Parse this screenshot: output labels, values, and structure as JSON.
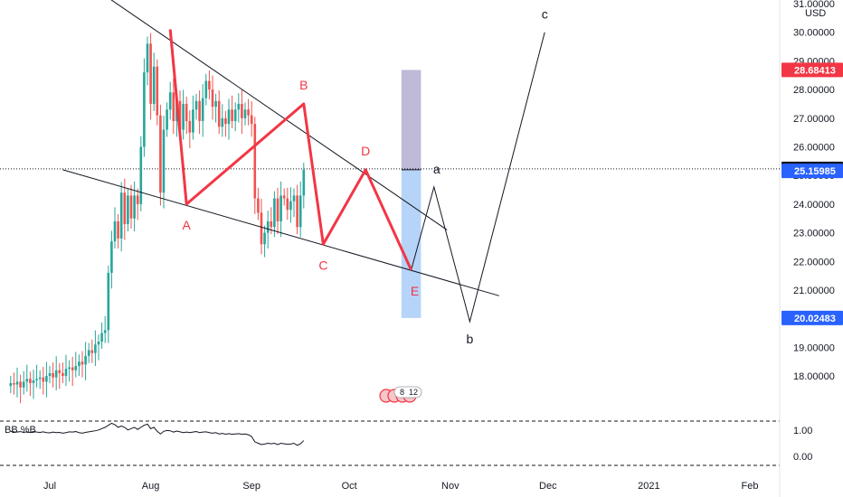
{
  "chart_data": {
    "type": "candlestick",
    "currency_label": "USD",
    "y_axis": {
      "range": [
        17.1,
        31.0
      ],
      "ticks": [
        "31.00000",
        "30.00000",
        "29.00000",
        "28.00000",
        "27.00000",
        "26.00000",
        "25.00000",
        "24.00000",
        "23.00000",
        "22.00000",
        "21.00000",
        "20.00000",
        "19.00000",
        "18.00000"
      ]
    },
    "x_axis": {
      "ticks": [
        "Jul",
        "Aug",
        "Sep",
        "Oct",
        "Nov",
        "Dec",
        "2021",
        "Feb"
      ]
    },
    "price_badges": [
      {
        "value": 28.68413,
        "label": "28.68413",
        "color": "#f23645"
      },
      {
        "value": 25.23252,
        "label": "25.23252",
        "color": "#131722"
      },
      {
        "value": 25.15985,
        "label": "25.15985",
        "color": "#2962ff"
      },
      {
        "value": 20.02483,
        "label": "20.02483",
        "color": "#2962ff"
      }
    ],
    "abcde_pattern": {
      "color": "#f23645",
      "points": [
        {
          "label": "",
          "date": "2020-08-07",
          "value": 30.1
        },
        {
          "label": "A",
          "date": "2020-08-12",
          "value": 24.0
        },
        {
          "label": "B",
          "date": "2020-09-17",
          "value": 27.5
        },
        {
          "label": "C",
          "date": "2020-09-23",
          "value": 22.6
        },
        {
          "label": "D",
          "date": "2020-10-06",
          "value": 25.2
        },
        {
          "label": "E",
          "date": "2020-10-20",
          "value": 21.7
        }
      ]
    },
    "projection": {
      "color": "#131722",
      "points": [
        {
          "label": "",
          "date": "2020-10-20",
          "value": 21.7
        },
        {
          "label": "a",
          "date": "2020-10-27",
          "value": 24.6
        },
        {
          "label": "b",
          "date": "2020-11-07",
          "value": 19.9
        },
        {
          "label": "c",
          "date": "2020-11-30",
          "value": 30.0
        }
      ]
    },
    "trendlines": [
      {
        "from": {
          "date": "2020-07-19",
          "value": 31.2
        },
        "to": {
          "date": "2020-10-31",
          "value": 23.1
        }
      },
      {
        "from": {
          "date": "2020-07-05",
          "value": 25.2
        },
        "to": {
          "date": "2020-11-16",
          "value": 20.8
        }
      }
    ],
    "position_box": {
      "start": "2020-10-17",
      "end": "2020-10-23",
      "entry": 25.2,
      "target_top": 28.68413,
      "stop_bottom": 20.02483,
      "upper_color": "#b3aed0",
      "lower_color": "#a9cdf7"
    },
    "current_price_line": 25.23252,
    "candles_daily": {
      "start": "2020-06-19",
      "closes": [
        17.75,
        17.7,
        17.8,
        17.6,
        17.8,
        17.9,
        17.75,
        17.85,
        17.9,
        17.95,
        17.8,
        18.0,
        18.1,
        17.95,
        18.2,
        18.1,
        18.0,
        18.25,
        18.3,
        18.2,
        18.35,
        18.5,
        18.4,
        18.7,
        18.9,
        18.8,
        19.1,
        19.2,
        19.5,
        19.6,
        21.6,
        22.7,
        23.4,
        22.8,
        24.4,
        23.3,
        24.3,
        23.5,
        24.3,
        24.0,
        26.0,
        28.6,
        29.6,
        27.5,
        28.8,
        27.1,
        24.4,
        26.6,
        27.3,
        27.9,
        26.9,
        27.6,
        26.6,
        27.5,
        26.9,
        26.5,
        27.3,
        27.6,
        26.9,
        27.7,
        28.3,
        28.0,
        27.4,
        27.6,
        26.7,
        27.0,
        26.8,
        27.3,
        26.9,
        27.3,
        27.5,
        27.0,
        27.3,
        27.1,
        26.8,
        24.2,
        23.7,
        22.6,
        23.0,
        23.4,
        23.2,
        24.2,
        23.4,
        24.3,
        24.2,
        23.8,
        24.1,
        24.3,
        23.2,
        24.3,
        25.2
      ]
    },
    "indicator": {
      "name": "BB %B",
      "ticks": [
        "1.00",
        "0.00"
      ],
      "range": [
        -0.3,
        1.3
      ],
      "values": [
        0.95,
        0.93,
        0.92,
        0.94,
        0.91,
        0.93,
        0.9,
        0.94,
        0.92,
        0.91,
        0.93,
        0.9,
        0.89,
        0.92,
        0.9,
        0.91,
        0.88,
        0.9,
        0.93,
        0.92,
        0.94,
        0.9,
        0.88,
        0.91,
        0.93,
        0.95,
        0.97,
        1.0,
        1.05,
        1.1,
        1.18,
        1.25,
        1.2,
        1.1,
        1.15,
        1.1,
        1.0,
        1.05,
        1.1,
        1.02,
        1.1,
        1.18,
        1.22,
        1.05,
        1.1,
        0.95,
        0.85,
        0.95,
        0.98,
        0.97,
        0.92,
        0.96,
        0.93,
        0.9,
        0.92,
        0.9,
        0.92,
        0.94,
        0.9,
        0.92,
        0.93,
        0.9,
        0.88,
        0.9,
        0.85,
        0.87,
        0.84,
        0.86,
        0.84,
        0.85,
        0.86,
        0.84,
        0.85,
        0.82,
        0.75,
        0.55,
        0.5,
        0.45,
        0.47,
        0.5,
        0.48,
        0.5,
        0.45,
        0.5,
        0.48,
        0.46,
        0.47,
        0.5,
        0.42,
        0.48,
        0.6
      ]
    },
    "event_badge": {
      "count": "8",
      "extra": "12"
    }
  }
}
